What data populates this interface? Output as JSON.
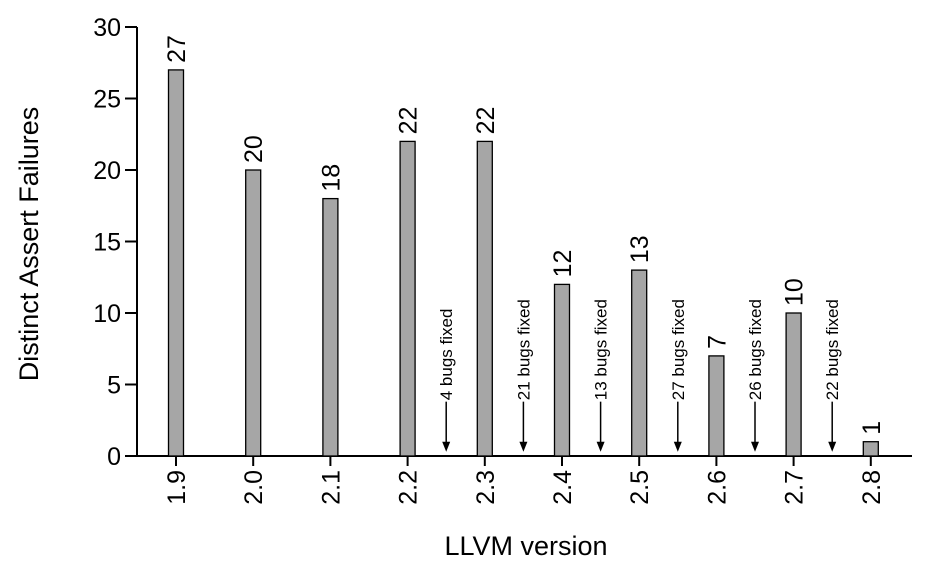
{
  "chart_data": {
    "type": "bar",
    "categories": [
      "1.9",
      "2.0",
      "2.1",
      "2.2",
      "2.3",
      "2.4",
      "2.5",
      "2.6",
      "2.7",
      "2.8"
    ],
    "values": [
      27,
      20,
      18,
      22,
      22,
      12,
      13,
      7,
      10,
      1
    ],
    "value_labels": [
      "27",
      "20",
      "18",
      "22",
      "22",
      "12",
      "13",
      "7",
      "10",
      "1"
    ],
    "ylim": [
      0,
      30
    ],
    "yticks": [
      "0",
      "5",
      "10",
      "15",
      "20",
      "25",
      "30"
    ],
    "xlabel": "LLVM version",
    "ylabel": "Distinct Assert Failures",
    "annotations": [
      {
        "between": [
          "2.2",
          "2.3"
        ],
        "text": "4 bugs fixed"
      },
      {
        "between": [
          "2.3",
          "2.4"
        ],
        "text": "21 bugs fixed"
      },
      {
        "between": [
          "2.4",
          "2.5"
        ],
        "text": "13 bugs fixed"
      },
      {
        "between": [
          "2.5",
          "2.6"
        ],
        "text": "27 bugs fixed"
      },
      {
        "between": [
          "2.6",
          "2.7"
        ],
        "text": "26 bugs fixed"
      },
      {
        "between": [
          "2.7",
          "2.8"
        ],
        "text": "22 bugs fixed"
      }
    ],
    "bar_color": "#a6a6a6",
    "grid": false,
    "legend": "none"
  }
}
